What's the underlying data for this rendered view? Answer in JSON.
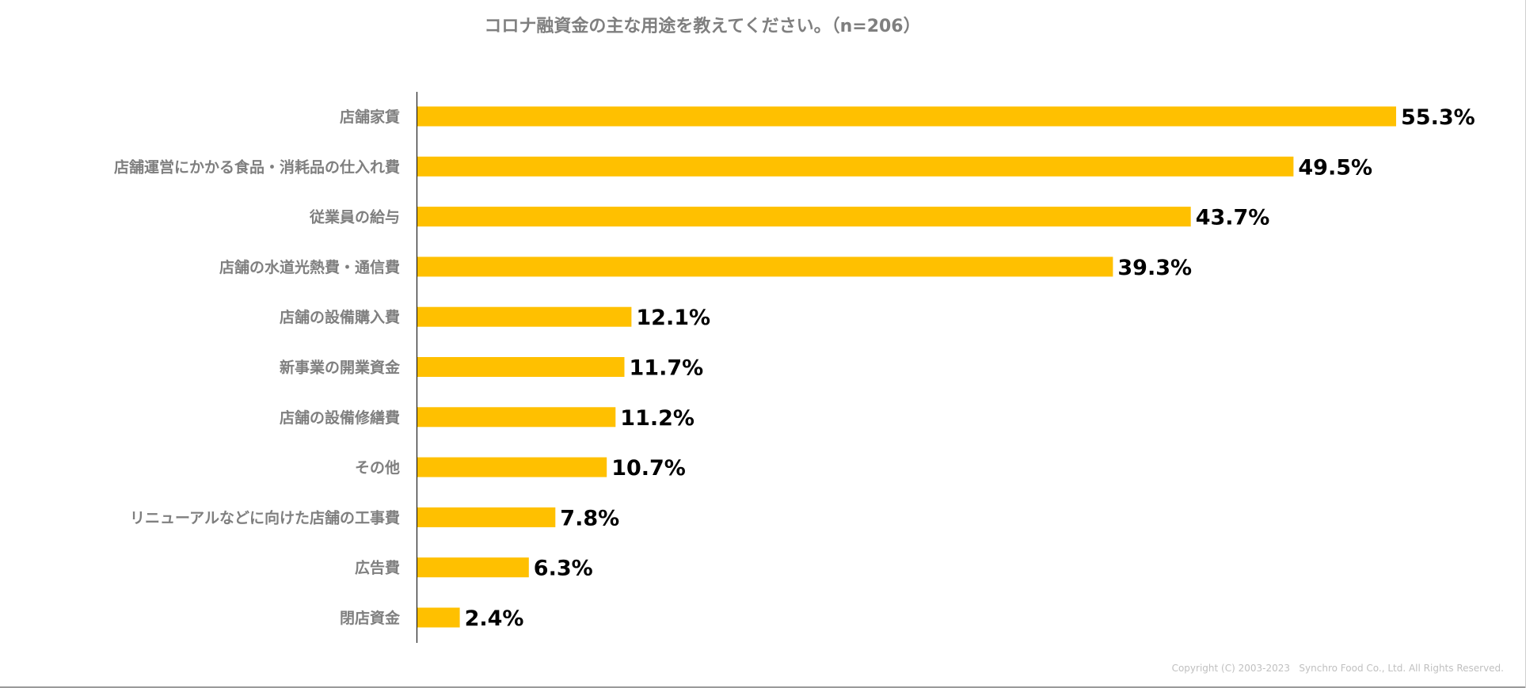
{
  "chart_data": {
    "type": "bar",
    "orientation": "horizontal",
    "title": "コロナ融資金の主な用途を教えてください。（n=206）",
    "categories": [
      "店舗家賃",
      "店舗運営にかかる食品・消耗品の仕入れ費",
      "従業員の給与",
      "店舗の水道光熱費・通信費",
      "店舗の設備購入費",
      "新事業の開業資金",
      "店舗の設備修繕費",
      "その他",
      "リニューアルなどに向けた店舗の工事費",
      "広告費",
      "閉店資金"
    ],
    "values": [
      55.3,
      49.5,
      43.7,
      39.3,
      12.1,
      11.7,
      11.2,
      10.7,
      7.8,
      6.3,
      2.4
    ],
    "value_labels": [
      "55.3%",
      "49.5%",
      "43.7%",
      "39.3%",
      "12.1%",
      "11.7%",
      "11.2%",
      "10.7%",
      "7.8%",
      "6.3%",
      "2.4%"
    ],
    "unit": "%",
    "xlim": [
      0,
      55.3
    ],
    "xlabel": "",
    "ylabel": "",
    "grid": false,
    "legend": "none",
    "bar_color": "#FFC000"
  },
  "footer": {
    "copyright": "Copyright (C) 2003-2023   Synchro Food Co., Ltd. All Rights Reserved."
  }
}
